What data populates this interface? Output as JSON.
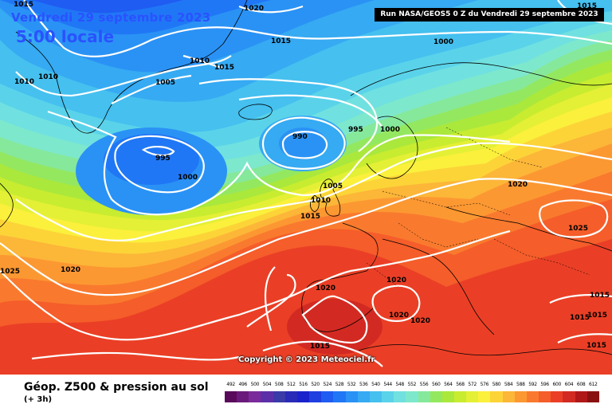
{
  "header": {
    "date": "Vendredi 29 septembre 2023",
    "local_time": "5:00 locale",
    "run": "Run NASA/GEOS5 0 Z du Vendredi 29 septembre 2023"
  },
  "copyright": "Copyright © 2023 Meteociel.fr",
  "legend": {
    "title": "Géop. Z500 & pression au sol",
    "subtitle": "(+ 3h)",
    "scale": [
      "492",
      "496",
      "500",
      "504",
      "508",
      "512",
      "516",
      "520",
      "524",
      "528",
      "532",
      "536",
      "540",
      "544",
      "548",
      "552",
      "556",
      "560",
      "564",
      "568",
      "572",
      "576",
      "580",
      "584",
      "588",
      "592",
      "596",
      "600",
      "604",
      "608",
      "612"
    ],
    "colors": [
      "#5a0a5a",
      "#6a1a7a",
      "#7a2a9a",
      "#5c2fa8",
      "#3a3aa8",
      "#2a2ab8",
      "#1a22cc",
      "#1f3fe0",
      "#1f5cf2",
      "#2077f5",
      "#2a92f5",
      "#36aaf2",
      "#45c0ef",
      "#5ad3ea",
      "#70e1e0",
      "#7ee8cc",
      "#86e89a",
      "#94e860",
      "#aae83c",
      "#c8ec30",
      "#e4f035",
      "#fbf03c",
      "#fcd438",
      "#fcb638",
      "#fc9832",
      "#f97a2e",
      "#f55d2a",
      "#ea3f26",
      "#d22a22",
      "#b01818",
      "#8a1010"
    ]
  },
  "isobar_labels": [
    {
      "id": "l1020a",
      "text": "1020"
    },
    {
      "id": "l1015a",
      "text": "1015"
    },
    {
      "id": "l1015b",
      "text": "1015"
    },
    {
      "id": "l1000a",
      "text": "1000"
    },
    {
      "id": "l1010a",
      "text": "1010"
    },
    {
      "id": "l1010b",
      "text": "1010"
    },
    {
      "id": "l1010c",
      "text": "1010"
    },
    {
      "id": "l1015c",
      "text": "1015"
    },
    {
      "id": "l1005a",
      "text": "1005"
    },
    {
      "id": "l990",
      "text": "990"
    },
    {
      "id": "l995a",
      "text": "995"
    },
    {
      "id": "l1000b",
      "text": "1000"
    },
    {
      "id": "l995b",
      "text": "995"
    },
    {
      "id": "l1000c",
      "text": "1000"
    },
    {
      "id": "l1005b",
      "text": "1005"
    },
    {
      "id": "l1010d",
      "text": "1010"
    },
    {
      "id": "l1015d",
      "text": "1015"
    },
    {
      "id": "l1020b",
      "text": "1020"
    },
    {
      "id": "l1025a",
      "text": "1025"
    },
    {
      "id": "l1020c",
      "text": "1020"
    },
    {
      "id": "l1025b",
      "text": "1025"
    },
    {
      "id": "l1020d",
      "text": "1020"
    },
    {
      "id": "l1020e",
      "text": "1020"
    },
    {
      "id": "l1020f",
      "text": "1020"
    },
    {
      "id": "l1020g",
      "text": "1020"
    },
    {
      "id": "l1015e",
      "text": "1015"
    },
    {
      "id": "l1015f",
      "text": "1015"
    },
    {
      "id": "l1015g",
      "text": "1015"
    },
    {
      "id": "l1015h",
      "text": "1015"
    },
    {
      "id": "l1015i",
      "text": "1015"
    },
    {
      "id": "l1015j",
      "text": "1015"
    }
  ]
}
